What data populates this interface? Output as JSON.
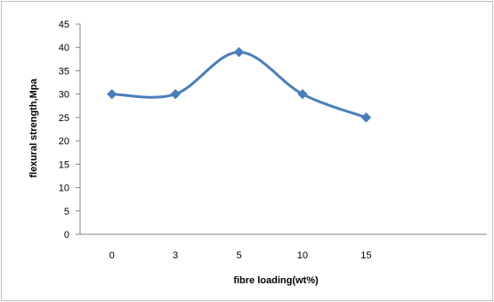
{
  "chart_data": {
    "type": "line",
    "title": "",
    "xlabel": "fibre loading(wt%)",
    "ylabel": "flexural strength,Mpa",
    "categories": [
      "0",
      "3",
      "5",
      "10",
      "15"
    ],
    "series": [
      {
        "values": [
          30,
          30,
          39,
          30,
          25
        ]
      }
    ],
    "ylim": [
      0,
      45
    ],
    "yticks": [
      0,
      5,
      10,
      15,
      20,
      25,
      30,
      35,
      40,
      45
    ],
    "line_color": "#4a7ebb",
    "marker": "diamond",
    "smooth": true,
    "grid": false,
    "legend": "none"
  }
}
